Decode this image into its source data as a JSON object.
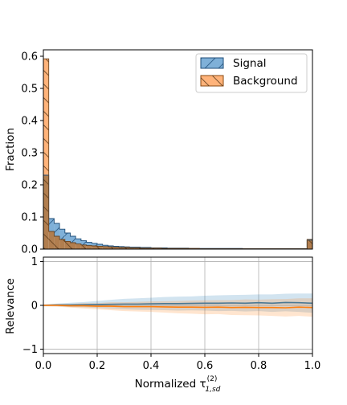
{
  "colors": {
    "signal": "#1f77b4",
    "background": "#ff7f0e",
    "signal_fill": "#7fb0d8",
    "background_fill": "#ffb37a",
    "overlap": "#b17e4f",
    "grid": "#b0b0b0"
  },
  "chart_data": [
    {
      "type": "bar",
      "subtype": "step-histogram",
      "ylabel": "Fraction",
      "xlabel": "",
      "xlim": [
        0.0,
        1.0
      ],
      "ylim": [
        0.0,
        0.62
      ],
      "yticks": [
        "0.0",
        "0.1",
        "0.2",
        "0.3",
        "0.4",
        "0.5",
        "0.6"
      ],
      "grid": false,
      "legend_position": "top-right",
      "bin_width": 0.02,
      "series": [
        {
          "name": "Signal",
          "values": [
            0.23,
            0.095,
            0.08,
            0.062,
            0.05,
            0.04,
            0.032,
            0.026,
            0.021,
            0.018,
            0.015,
            0.012,
            0.01,
            0.009,
            0.008,
            0.007,
            0.006,
            0.006,
            0.005,
            0.005,
            0.004,
            0.004,
            0.004,
            0.003,
            0.003,
            0.003,
            0.003,
            0.002,
            0.002,
            0.002,
            0.002,
            0.002,
            0.002,
            0.002,
            0.002,
            0.002,
            0.002,
            0.001,
            0.001,
            0.001,
            0.001,
            0.001,
            0.001,
            0.001,
            0.001,
            0.001,
            0.001,
            0.001,
            0.001,
            0.028
          ]
        },
        {
          "name": "Background",
          "values": [
            0.592,
            0.055,
            0.04,
            0.03,
            0.024,
            0.02,
            0.016,
            0.013,
            0.011,
            0.01,
            0.009,
            0.008,
            0.007,
            0.006,
            0.005,
            0.005,
            0.004,
            0.004,
            0.003,
            0.003,
            0.003,
            0.003,
            0.002,
            0.002,
            0.002,
            0.002,
            0.002,
            0.002,
            0.002,
            0.001,
            0.001,
            0.001,
            0.001,
            0.001,
            0.001,
            0.001,
            0.001,
            0.001,
            0.001,
            0.001,
            0.001,
            0.001,
            0.001,
            0.001,
            0.001,
            0.001,
            0.001,
            0.001,
            0.001,
            0.03
          ]
        }
      ]
    },
    {
      "type": "line",
      "ylabel": "Relevance",
      "xlabel": "Normalized τ",
      "xlabel_sup": "(2)",
      "xlabel_sub": "1,sd",
      "xlim": [
        0.0,
        1.0
      ],
      "ylim": [
        -1.1,
        1.1
      ],
      "xticks": [
        "0.0",
        "0.2",
        "0.4",
        "0.6",
        "0.8",
        "1.0"
      ],
      "yticks": [
        "−1",
        "0",
        "1"
      ],
      "grid": true,
      "x": [
        0.0,
        0.05,
        0.1,
        0.15,
        0.2,
        0.25,
        0.3,
        0.35,
        0.4,
        0.45,
        0.5,
        0.55,
        0.6,
        0.65,
        0.7,
        0.75,
        0.8,
        0.85,
        0.9,
        0.95,
        1.0
      ],
      "series": [
        {
          "name": "Signal",
          "values": [
            0.0,
            0.01,
            0.01,
            0.015,
            0.02,
            0.025,
            0.03,
            0.03,
            0.035,
            0.04,
            0.04,
            0.045,
            0.05,
            0.05,
            0.055,
            0.05,
            0.06,
            0.05,
            0.065,
            0.06,
            0.05
          ],
          "band": [
            0.02,
            0.03,
            0.05,
            0.06,
            0.08,
            0.1,
            0.12,
            0.13,
            0.14,
            0.15,
            0.16,
            0.16,
            0.17,
            0.18,
            0.18,
            0.19,
            0.19,
            0.2,
            0.2,
            0.21,
            0.22
          ]
        },
        {
          "name": "Background",
          "values": [
            0.0,
            0.0,
            -0.01,
            -0.01,
            -0.02,
            -0.02,
            -0.03,
            -0.03,
            -0.03,
            -0.035,
            -0.04,
            -0.04,
            -0.045,
            -0.04,
            -0.05,
            -0.045,
            -0.05,
            -0.05,
            -0.055,
            -0.04,
            -0.05
          ],
          "band": [
            0.02,
            0.03,
            0.04,
            0.06,
            0.07,
            0.09,
            0.1,
            0.11,
            0.12,
            0.13,
            0.14,
            0.15,
            0.16,
            0.16,
            0.17,
            0.18,
            0.18,
            0.19,
            0.2,
            0.2,
            0.21
          ]
        }
      ]
    }
  ]
}
